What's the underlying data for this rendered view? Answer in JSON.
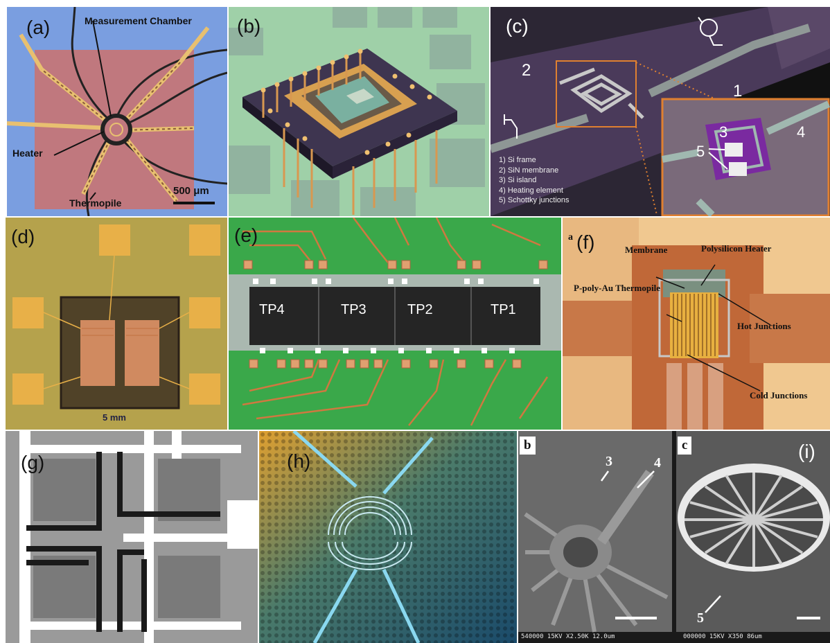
{
  "panel_a": {
    "label": "(a)",
    "measurement_chamber": "Measurement Chamber",
    "heater": "Heater",
    "thermopile": "Thermopile",
    "scale_bar": "500 μm"
  },
  "panel_b": {
    "label": "(b)"
  },
  "panel_c": {
    "label": "(c)",
    "num_2": "2",
    "num_1": "1",
    "legend": [
      "1) Si frame",
      "2) SiN membrane",
      "3) Si island",
      "4) Heating element",
      "5) Schottky junctions"
    ],
    "inset_3": "3",
    "inset_4": "4",
    "inset_5": "5"
  },
  "panel_d": {
    "label": "(d)",
    "scale": "5 mm"
  },
  "panel_e": {
    "label": "(e)",
    "tp_labels": [
      "TP4",
      "TP3",
      "TP2",
      "TP1"
    ]
  },
  "panel_f": {
    "small_a": "a",
    "label": "(f)",
    "membrane": "Membrane",
    "heater": "Polysilicon Heater",
    "thermopile": "P-poly-Au Thermopile",
    "hot": "Hot Junctions",
    "cold": "Cold Junctions"
  },
  "panel_g": {
    "label": "(g)"
  },
  "panel_h": {
    "label": "(h)"
  },
  "panel_i": {
    "label": "(i)",
    "sub_b": "b",
    "sub_c": "c",
    "num_3": "3",
    "num_4": "4",
    "num_5": "5",
    "sem_left": "540000 15KV X2.50K 12.0um",
    "sem_right": "000000 15KV X350 86um"
  }
}
